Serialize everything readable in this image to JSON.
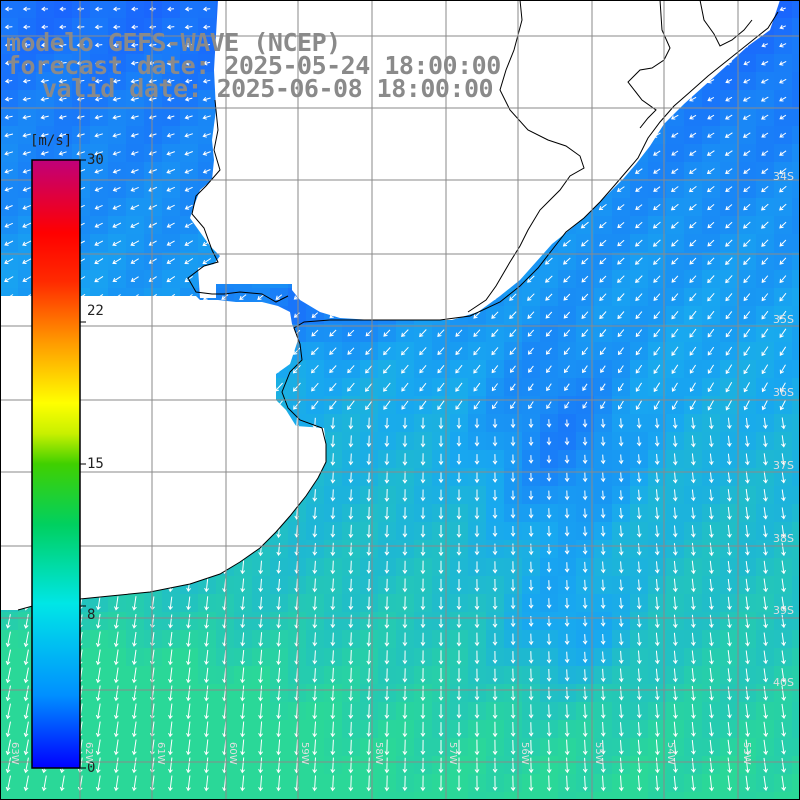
{
  "title": {
    "line1": "modelo GEFS-WAVE (NCEP)",
    "line2": "forecast date: 2025-05-24 18:00:00",
    "line3": "valid date: 2025-06-08 18:00:00"
  },
  "colorbar": {
    "unit": "[m/s]",
    "ticks": [
      "30",
      "22",
      "15",
      "8",
      "0"
    ],
    "tick_values": [
      30,
      22,
      15,
      8,
      0
    ],
    "colors": [
      "#0000ff",
      "#00b4ff",
      "#00e0e0",
      "#00d27a",
      "#2fcc00",
      "#a6ea00",
      "#ffff00",
      "#ff9a00",
      "#ff3000",
      "#ff0000",
      "#e0004c",
      "#c0007a"
    ]
  },
  "map": {
    "lat_labels": [
      "34S",
      "35S",
      "36S",
      "37S",
      "38S",
      "39S",
      "40S"
    ],
    "lon_labels": [
      "63W",
      "62W",
      "61W",
      "60W",
      "59W",
      "58W",
      "57W",
      "56W",
      "55W",
      "54W",
      "53W"
    ],
    "ocean_low_color": "#1a5cff",
    "ocean_mid_color": "#18a8f0",
    "ocean_high_color": "#2ad898",
    "land_color": "#ffffff",
    "grid_color": "#8a8a8a",
    "arrow_color": "#ffffff"
  }
}
